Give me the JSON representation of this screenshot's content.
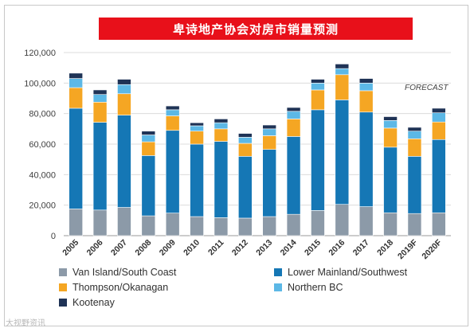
{
  "title": "卑诗地产协会对房市销量预测",
  "watermark": "大视野资讯",
  "chart_data": {
    "type": "bar",
    "stacked": true,
    "title": "卑诗地产协会对房市销量预测",
    "annotation": "FORECAST",
    "categories": [
      "2005",
      "2006",
      "2007",
      "2008",
      "2009",
      "2010",
      "2011",
      "2012",
      "2013",
      "2014",
      "2015",
      "2016",
      "2017",
      "2018",
      "2019F",
      "2020F"
    ],
    "ylim": [
      0,
      120000
    ],
    "yticks": [
      "0",
      "20,000",
      "40,000",
      "60,000",
      "80,000",
      "100,000",
      "120,000"
    ],
    "grid": "horizontal",
    "legend_position": "bottom",
    "series": [
      {
        "name": "Van Island/South Coast",
        "color": "#8c9aa8",
        "values": [
          17500,
          16800,
          18500,
          13000,
          14800,
          12500,
          11800,
          11500,
          12500,
          14000,
          16500,
          20500,
          19000,
          15000,
          14500,
          15000
        ]
      },
      {
        "name": "Lower Mainland/Southwest",
        "color": "#1577b5",
        "values": [
          66000,
          57500,
          60500,
          39500,
          54200,
          47500,
          50000,
          40500,
          44000,
          51000,
          66000,
          68500,
          62000,
          43000,
          37500,
          48000
        ]
      },
      {
        "name": "Thompson/Okanagan",
        "color": "#f5a623",
        "values": [
          13500,
          13200,
          14000,
          9000,
          9500,
          8500,
          8200,
          8500,
          9000,
          11500,
          13000,
          16500,
          14000,
          12500,
          11500,
          11500
        ]
      },
      {
        "name": "Northern BC",
        "color": "#5cb8e6",
        "values": [
          6000,
          5000,
          6000,
          4500,
          4000,
          3500,
          4000,
          4000,
          4500,
          5000,
          4500,
          4000,
          5000,
          5000,
          5000,
          6000
        ]
      },
      {
        "name": "Kootenay",
        "color": "#1f3356",
        "values": [
          3500,
          3000,
          3500,
          2500,
          2500,
          2000,
          2500,
          2500,
          2500,
          2500,
          2500,
          3000,
          3000,
          2500,
          2500,
          3000
        ]
      }
    ]
  }
}
